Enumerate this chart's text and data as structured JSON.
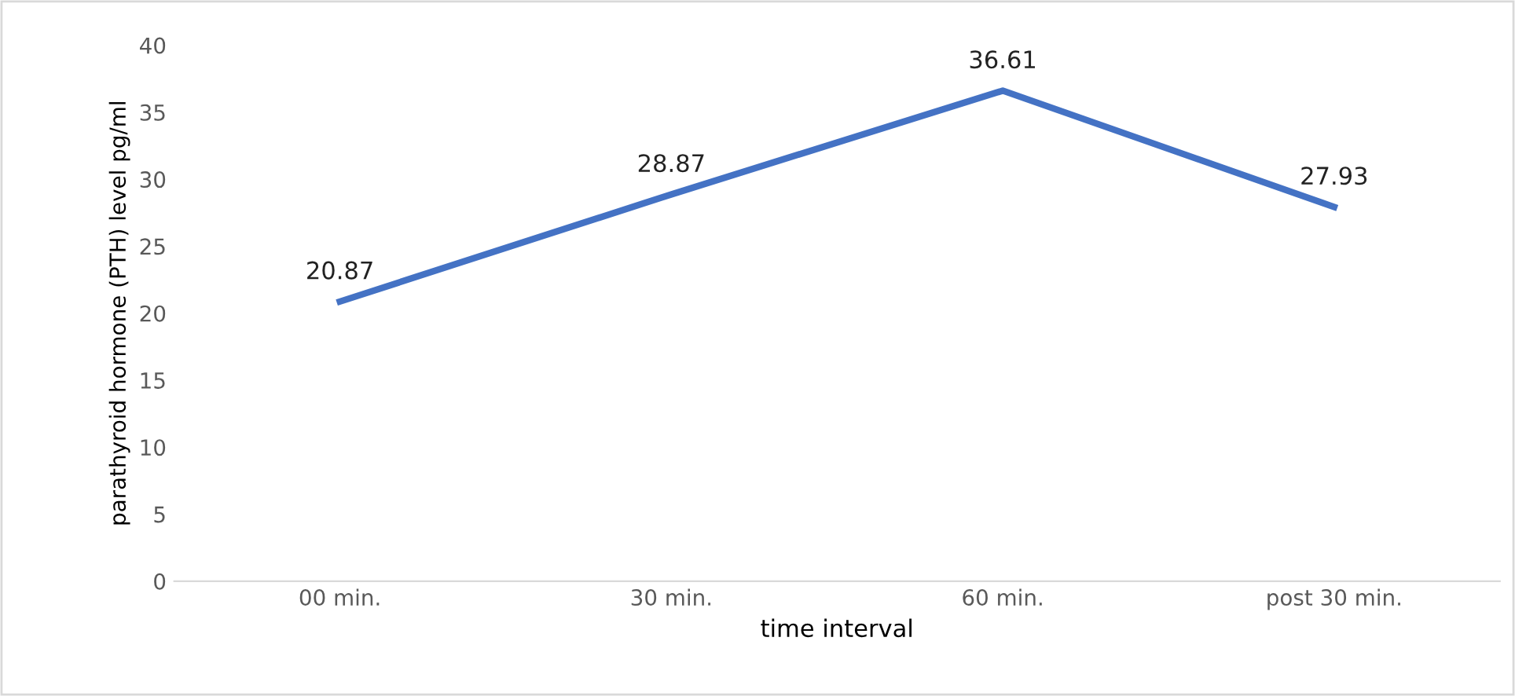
{
  "chart_data": {
    "type": "line",
    "xlabel": "time interval",
    "ylabel": "parathyroid hormone (PTH) level pg/ml",
    "categories": [
      "00 min.",
      "30 min.",
      "60 min.",
      "post 30 min."
    ],
    "series": [
      {
        "color": "#4472c4",
        "values": [
          20.87,
          28.87,
          36.61,
          27.93
        ]
      }
    ],
    "ylim": [
      0,
      40
    ],
    "yticks": [
      0,
      5,
      10,
      15,
      20,
      25,
      30,
      35,
      40
    ],
    "grid": false,
    "data_labels": true,
    "marker": "none",
    "line_style": "solid",
    "legend": false
  }
}
